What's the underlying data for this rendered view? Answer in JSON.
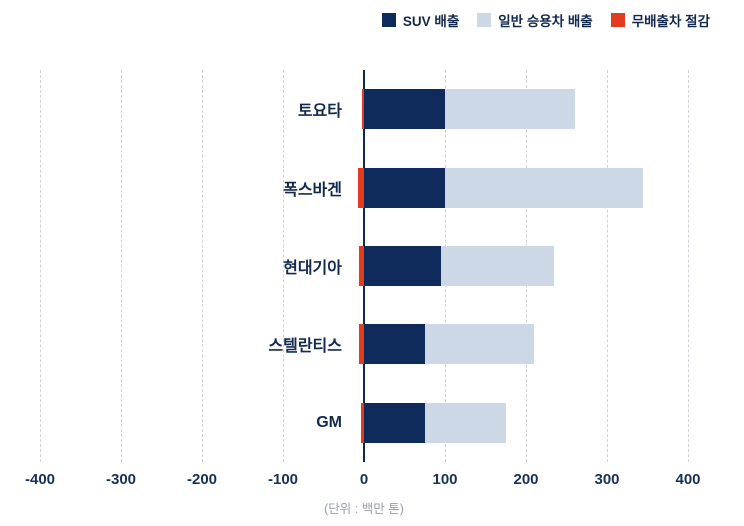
{
  "legend": {
    "items": [
      {
        "label": "SUV 배출",
        "color": "#0e2b5c"
      },
      {
        "label": "일반 승용차 배출",
        "color": "#ccd8e5"
      },
      {
        "label": "무배출차 절감",
        "color": "#e23b1e"
      }
    ]
  },
  "chart_data": {
    "type": "bar",
    "orientation": "horizontal",
    "stacked": true,
    "title": "",
    "xlabel": "",
    "ylabel": "",
    "categories": [
      "토요타",
      "폭스바겐",
      "현대기아",
      "스텔란티스",
      "GM"
    ],
    "series": [
      {
        "name": "SUV 배출",
        "color": "#0e2b5c",
        "values": [
          100,
          100,
          95,
          75,
          75
        ]
      },
      {
        "name": "일반 승용차 배출",
        "color": "#ccd8e5",
        "values": [
          160,
          245,
          140,
          135,
          100
        ]
      },
      {
        "name": "무배출차 절감",
        "color": "#e23b1e",
        "values": [
          -2,
          -7,
          -6,
          -6,
          -4
        ]
      }
    ],
    "xlim": [
      -400,
      400
    ],
    "xticks": [
      -400,
      -300,
      -200,
      -100,
      0,
      100,
      200,
      300,
      400
    ],
    "grid": "dashed-vertical",
    "legend_position": "top-right"
  },
  "footer": {
    "unit_note": "(단위 : 백만 톤)"
  }
}
